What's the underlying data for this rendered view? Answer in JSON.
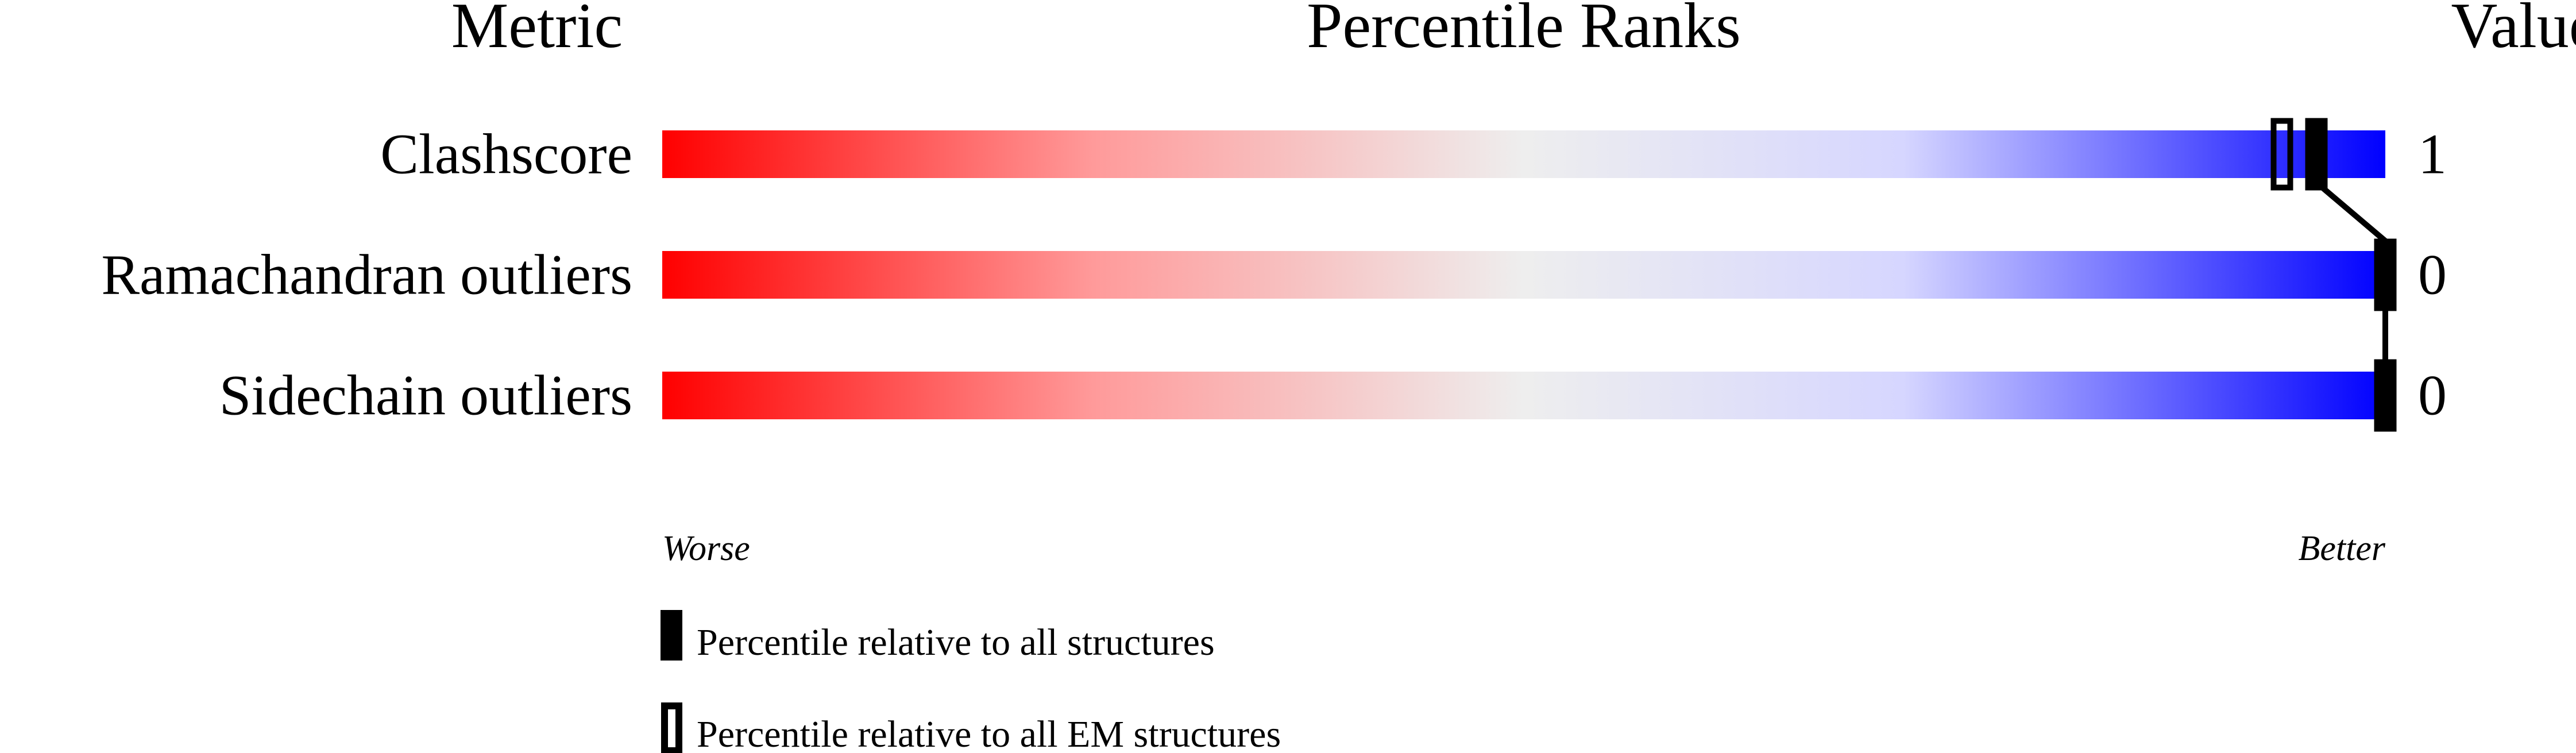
{
  "chart_data": {
    "type": "percentile-bar",
    "headers": {
      "metric": "Metric",
      "ranks": "Percentile Ranks",
      "value": "Value"
    },
    "xlim": [
      0,
      100
    ],
    "metrics": [
      {
        "label": "Clashscore",
        "value": "1",
        "percentile_all": 96,
        "percentile_em": 94
      },
      {
        "label": "Ramachandran outliers",
        "value": "0",
        "percentile_all": 100,
        "percentile_em": 100
      },
      {
        "label": "Sidechain outliers",
        "value": "0",
        "percentile_all": 100,
        "percentile_em": 100
      }
    ],
    "axis_labels": {
      "worse": "Worse",
      "better": "Better"
    },
    "legend": [
      {
        "style": "filled",
        "label": "Percentile relative to all structures"
      },
      {
        "style": "open",
        "label": "Percentile relative to all EM structures"
      }
    ],
    "colors": {
      "worse": "#ff0000",
      "middle": "#eeeeee",
      "better": "#0000ff",
      "marker": "#000000"
    }
  }
}
